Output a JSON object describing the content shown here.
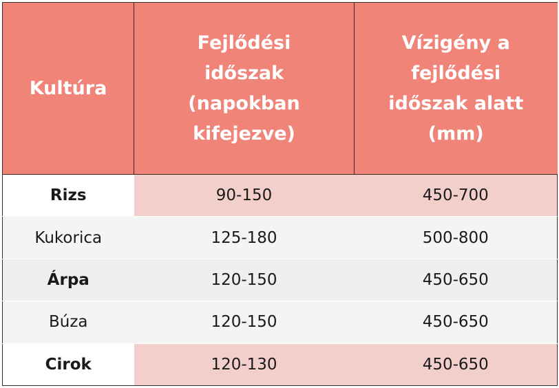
{
  "table": {
    "headers": {
      "crop": [
        "Kultúra"
      ],
      "period": [
        "Fejlődési",
        "időszak",
        "(napokban",
        "kifejezve)"
      ],
      "water": [
        "Vízigény a",
        "fejlődési",
        "időszak alatt",
        "(mm)"
      ]
    },
    "rows": [
      {
        "name": "Rizs",
        "period": "90-150",
        "water": "450-700"
      },
      {
        "name": "Kukorica",
        "period": "125-180",
        "water": "500-800"
      },
      {
        "name": "Árpa",
        "period": "120-150",
        "water": "450-650"
      },
      {
        "name": "Búza",
        "period": "120-150",
        "water": "450-650"
      },
      {
        "name": "Cirok",
        "period": "120-130",
        "water": "450-650"
      }
    ],
    "colors": {
      "header_bg": "#f08479",
      "pink_row": "#f3cfcb",
      "gray_row": "#f4f4f4"
    }
  }
}
